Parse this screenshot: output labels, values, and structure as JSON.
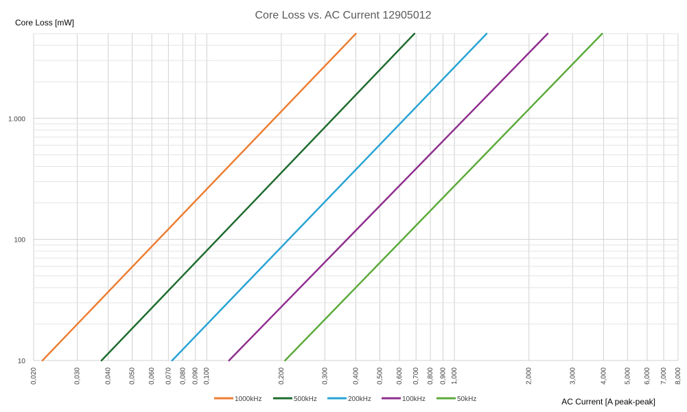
{
  "chart_data": {
    "type": "line",
    "title": "Core Loss vs. AC Current 12905012",
    "ylabel": "Core Loss [mW]",
    "xlabel": "AC Current [A peak-peak]",
    "x_scale": "log",
    "y_scale": "log",
    "xlim": [
      0.02,
      8
    ],
    "ylim": [
      10,
      5000
    ],
    "grid": true,
    "legend_position": "bottom",
    "x_ticks": [
      {
        "value": 0.02,
        "label": "0,020"
      },
      {
        "value": 0.03,
        "label": "0,030"
      },
      {
        "value": 0.04,
        "label": "0,040"
      },
      {
        "value": 0.05,
        "label": "0,050"
      },
      {
        "value": 0.06,
        "label": "0,060"
      },
      {
        "value": 0.07,
        "label": "0,070"
      },
      {
        "value": 0.08,
        "label": "0,080"
      },
      {
        "value": 0.09,
        "label": "0,090"
      },
      {
        "value": 0.1,
        "label": "0,100"
      },
      {
        "value": 0.2,
        "label": "0,200"
      },
      {
        "value": 0.3,
        "label": "0,300"
      },
      {
        "value": 0.4,
        "label": "0,400"
      },
      {
        "value": 0.5,
        "label": "0,500"
      },
      {
        "value": 0.6,
        "label": "0,600"
      },
      {
        "value": 0.7,
        "label": "0,700"
      },
      {
        "value": 0.8,
        "label": "0,800"
      },
      {
        "value": 0.9,
        "label": "0,900"
      },
      {
        "value": 1,
        "label": "1,000"
      },
      {
        "value": 2,
        "label": "2,000"
      },
      {
        "value": 3,
        "label": "3,000"
      },
      {
        "value": 4,
        "label": "4,000"
      },
      {
        "value": 5,
        "label": "5,000"
      },
      {
        "value": 6,
        "label": "6,000"
      },
      {
        "value": 7,
        "label": "7,000"
      },
      {
        "value": 8,
        "label": "8,000"
      }
    ],
    "y_ticks": [
      {
        "value": 10,
        "label": "10"
      },
      {
        "value": 100,
        "label": "100"
      },
      {
        "value": 1000,
        "label": "1.000"
      }
    ],
    "series": [
      {
        "name": "1000kHz",
        "color": "#ED7D31",
        "x": [
          0.0217,
          0.4
        ],
        "y": [
          10,
          5000
        ]
      },
      {
        "name": "500kHz",
        "color": "#1E6B2E",
        "x": [
          0.0376,
          0.69
        ],
        "y": [
          10,
          5000
        ]
      },
      {
        "name": "200kHz",
        "color": "#27A3D4",
        "x": [
          0.0725,
          1.35
        ],
        "y": [
          10,
          5000
        ]
      },
      {
        "name": "100kHz",
        "color": "#8E2D8E",
        "x": [
          0.123,
          2.38
        ],
        "y": [
          10,
          5000
        ]
      },
      {
        "name": "50kHz",
        "color": "#5BAA3A",
        "x": [
          0.207,
          3.95
        ],
        "y": [
          10,
          5000
        ]
      }
    ]
  }
}
